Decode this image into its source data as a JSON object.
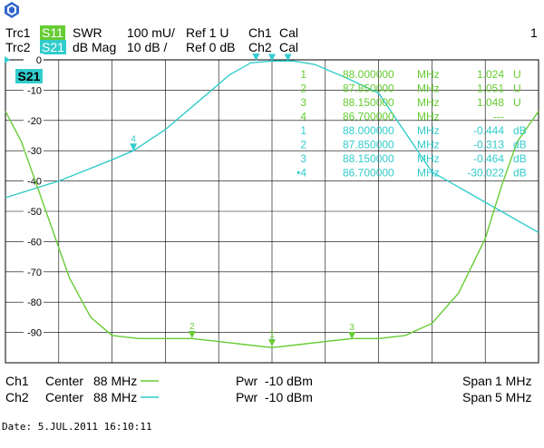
{
  "header": {
    "trc1": {
      "name": "Trc1",
      "meas": "S11",
      "format": "SWR",
      "scale": "100 mU/",
      "ref": "Ref 1 U",
      "ch": "Ch1",
      "cal": "Cal"
    },
    "trc2": {
      "name": "Trc2",
      "meas": "S21",
      "format": "dB Mag",
      "scale": "10 dB /",
      "ref": "Ref 0 dB",
      "ch": "Ch2",
      "cal": "Cal"
    },
    "window_number": "1"
  },
  "colors": {
    "trace1": "#66cc33",
    "trace2": "#33cccc",
    "grid": "#000000",
    "background": "#ffffff"
  },
  "active_trace_label": "S21",
  "markers": [
    {
      "num": "1",
      "freq": "88.000000",
      "unit": "MHz",
      "value": "1.024",
      "vunit": "U",
      "trace": "trace1"
    },
    {
      "num": "2",
      "freq": "87.850000",
      "unit": "MHz",
      "value": "1.051",
      "vunit": "U",
      "trace": "trace1"
    },
    {
      "num": "3",
      "freq": "88.150000",
      "unit": "MHz",
      "value": "1.048",
      "vunit": "U",
      "trace": "trace1"
    },
    {
      "num": "4",
      "freq": "86.700000",
      "unit": "MHz",
      "value": "---",
      "vunit": "",
      "trace": "trace1"
    },
    {
      "num": "1",
      "freq": "88.000000",
      "unit": "MHz",
      "value": "-0.444",
      "vunit": "dB",
      "trace": "trace2"
    },
    {
      "num": "2",
      "freq": "87.850000",
      "unit": "MHz",
      "value": "-0.313",
      "vunit": "dB",
      "trace": "trace2"
    },
    {
      "num": "3",
      "freq": "88.150000",
      "unit": "MHz",
      "value": "-0.464",
      "vunit": "dB",
      "trace": "trace2"
    },
    {
      "num": "•4",
      "freq": "86.700000",
      "unit": "MHz",
      "value": "-30.022",
      "vunit": "dB",
      "trace": "trace2"
    }
  ],
  "chart_data": {
    "type": "line",
    "y_ticks": [
      "0",
      "-10",
      "-20",
      "-30",
      "-40",
      "-50",
      "-60",
      "-70",
      "-80",
      "-90"
    ],
    "ylim": [
      -100,
      0
    ],
    "series": [
      {
        "name": "S11",
        "unit": "U",
        "ref": 1,
        "per_div": 0.1,
        "x_mhz": [
          87.5,
          87.53,
          87.56,
          87.59,
          87.62,
          87.66,
          87.7,
          87.75,
          87.8,
          87.85,
          87.9,
          87.95,
          88.0,
          88.05,
          88.1,
          88.15,
          88.2,
          88.25,
          88.3,
          88.35,
          88.4,
          88.43,
          88.46,
          88.5
        ],
        "y": [
          1.8,
          1.7,
          1.55,
          1.4,
          1.25,
          1.12,
          1.06,
          1.05,
          1.05,
          1.05,
          1.04,
          1.03,
          1.02,
          1.03,
          1.04,
          1.05,
          1.05,
          1.06,
          1.1,
          1.2,
          1.38,
          1.55,
          1.7,
          1.8
        ]
      },
      {
        "name": "S21",
        "unit": "dB",
        "x_mhz": [
          85.5,
          86.0,
          86.5,
          86.7,
          87.0,
          87.3,
          87.6,
          87.8,
          88.0,
          88.2,
          88.4,
          88.7,
          89.0,
          89.5,
          90.0,
          90.5
        ],
        "y": [
          -45.5,
          -40,
          -33,
          -30,
          -23,
          -14,
          -5,
          -1,
          -0.4,
          -0.4,
          -1.5,
          -6,
          -11,
          -37,
          -47,
          -57
        ]
      }
    ]
  },
  "footer": {
    "ch1": {
      "name": "Ch1",
      "center": "Center",
      "center_val": "88 MHz",
      "pwr": "Pwr",
      "pwr_val": "-10 dBm",
      "span": "Span",
      "span_val": "1 MHz"
    },
    "ch2": {
      "name": "Ch2",
      "center": "Center",
      "center_val": "88 MHz",
      "pwr": "Pwr",
      "pwr_val": "-10 dBm",
      "span": "Span",
      "span_val": "5 MHz"
    }
  },
  "date_label": "Date: 5.JUL.2011  16:10:11"
}
